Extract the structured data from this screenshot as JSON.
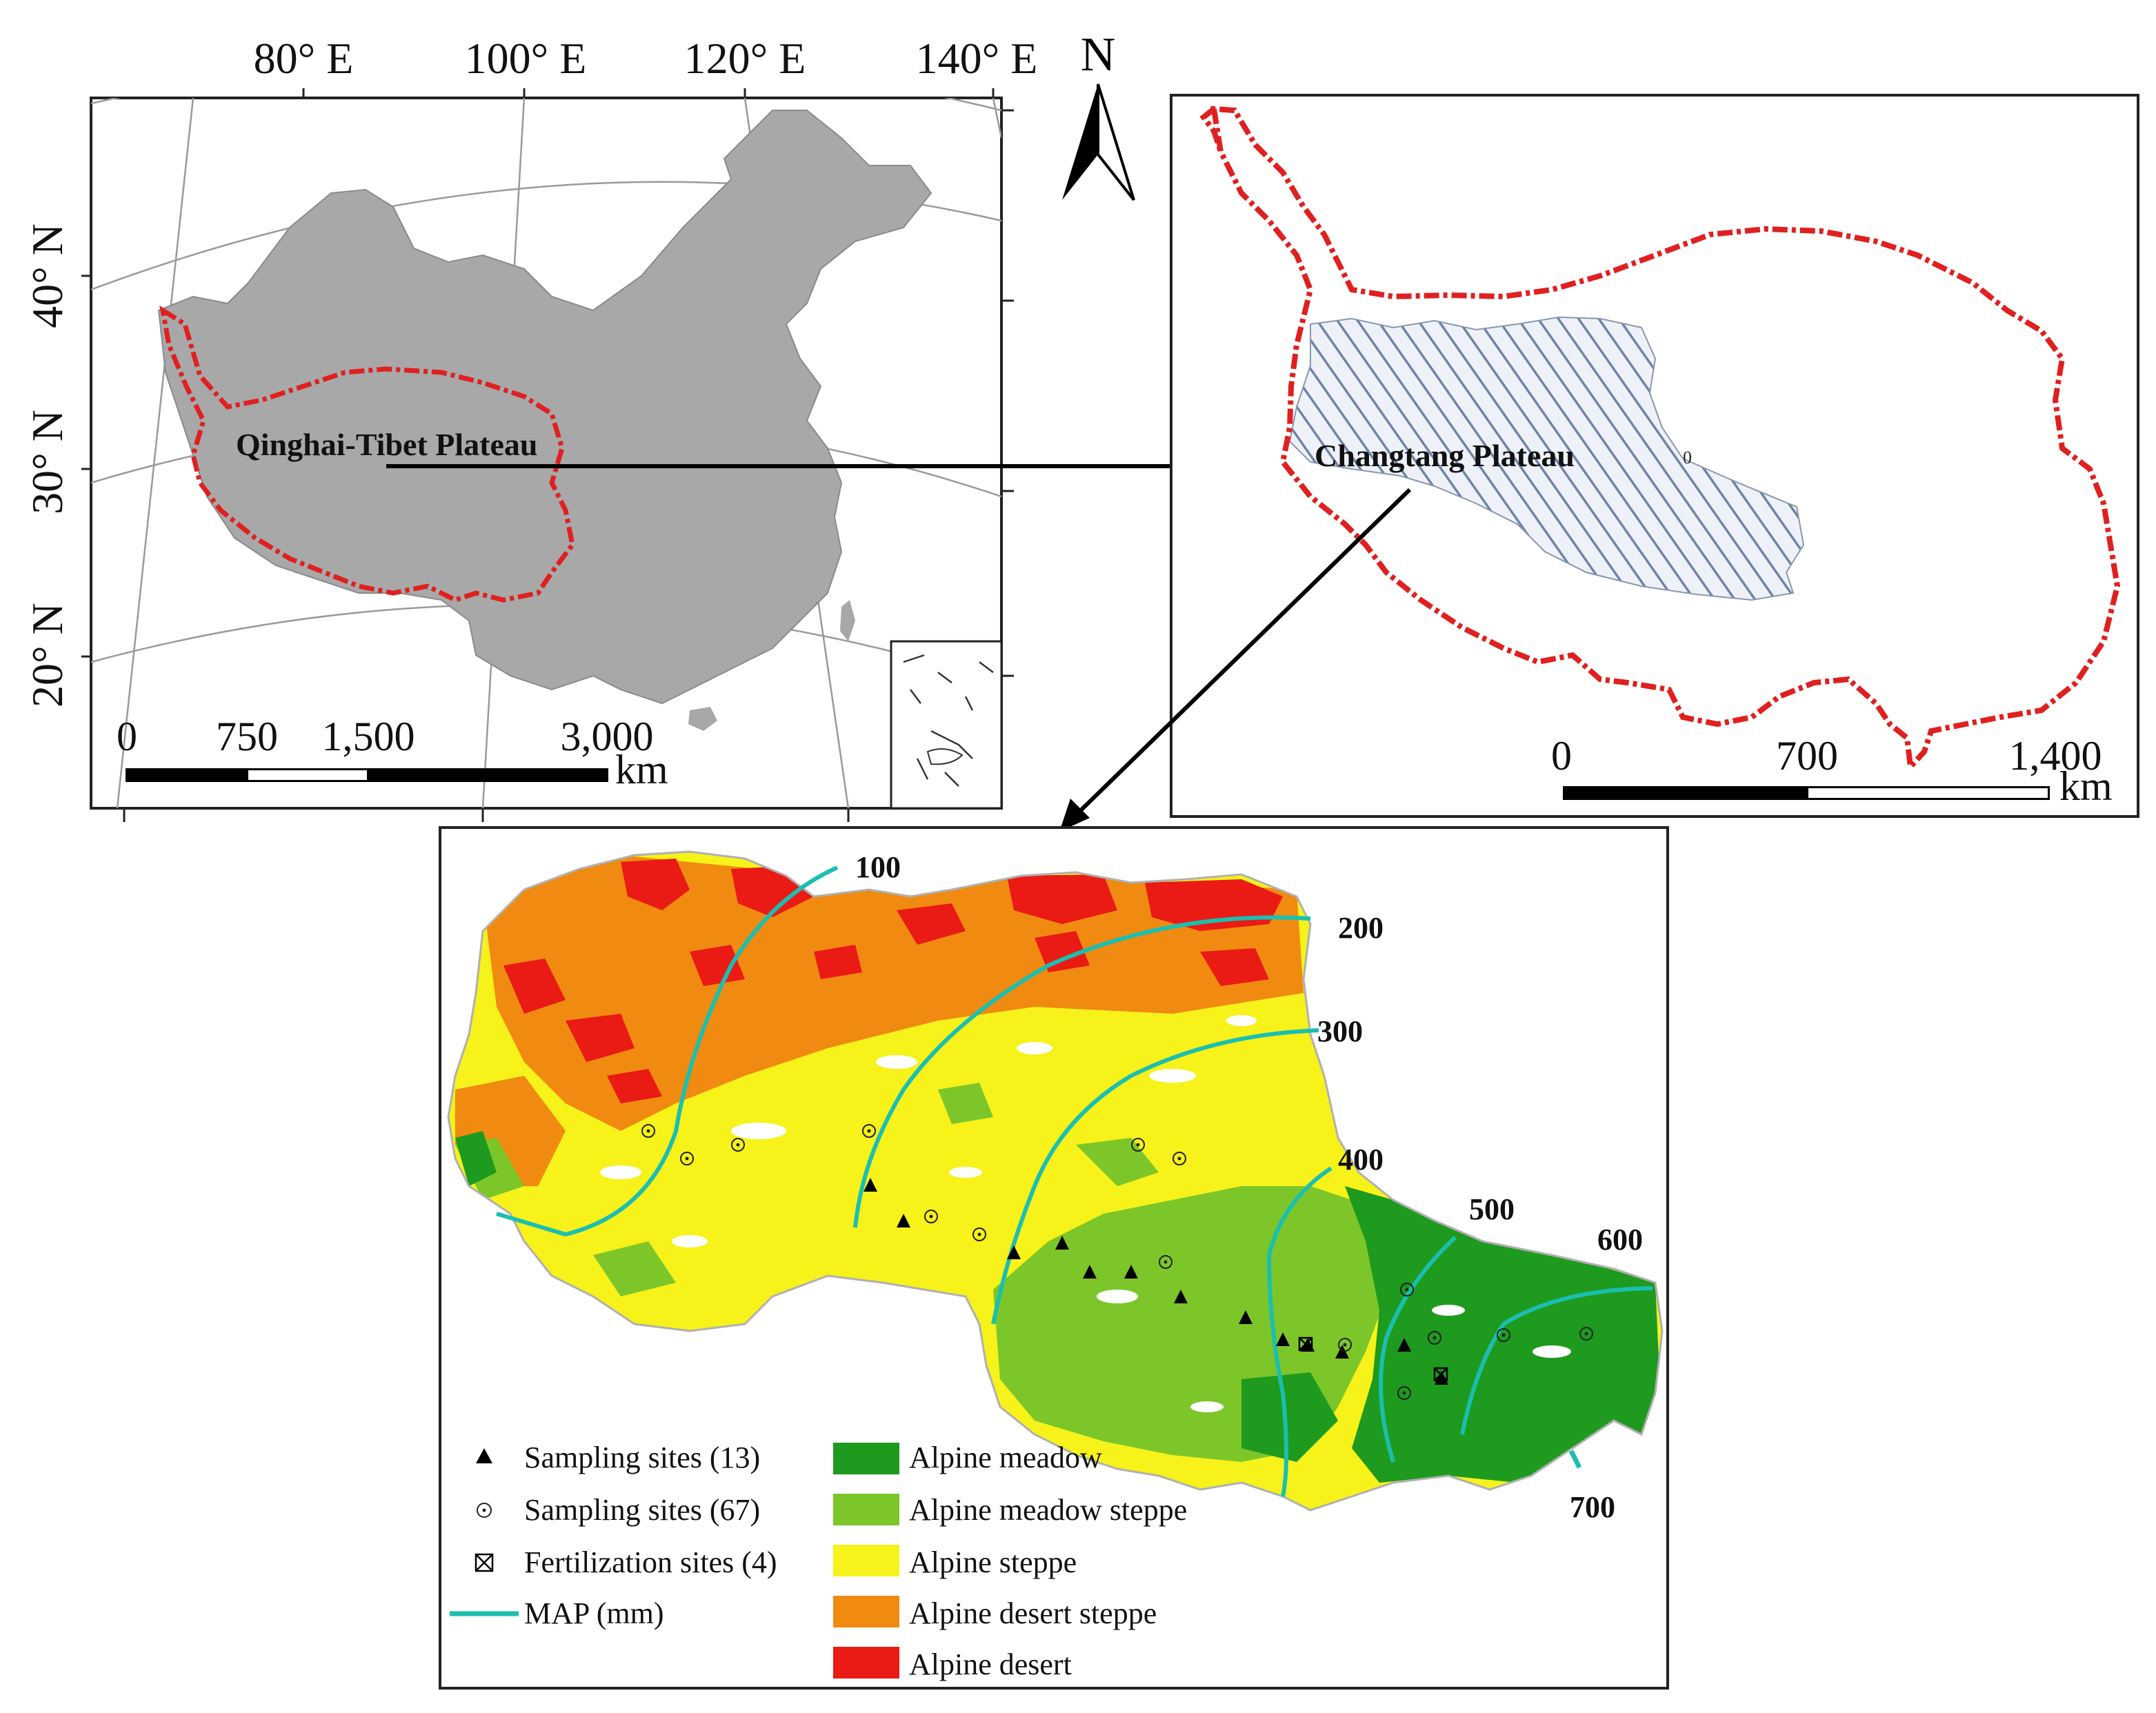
{
  "china_map": {
    "longitude_labels": [
      "80° E",
      "100° E",
      "120° E",
      "140° E"
    ],
    "latitude_labels": [
      "40° N",
      "30° N",
      "20° N"
    ],
    "plateau_label": "Qinghai-Tibet Plateau",
    "scale_ticks": [
      "0",
      "750",
      "1,500",
      "3,000"
    ],
    "scale_unit": "km",
    "country_color": "#a8a8a8",
    "boundary_color": "#e02020"
  },
  "north_arrow": {
    "label": "N"
  },
  "plateau_map": {
    "region_label": "Changtang Plateau",
    "small_mark": "0",
    "scale_ticks": [
      "0",
      "700",
      "1,400"
    ],
    "scale_unit": "km",
    "hatch_color": "#6f84a8"
  },
  "study_map": {
    "isohyets": [
      "100",
      "200",
      "300",
      "400",
      "500",
      "600",
      "700"
    ],
    "isohyet_color": "#1bbfb0",
    "legend": {
      "markers": [
        {
          "symbol": "triangle-icon",
          "label": "Sampling sites (13)"
        },
        {
          "symbol": "dotted-circle-icon",
          "label": "Sampling sites (67)"
        },
        {
          "symbol": "crossed-box-icon",
          "label": "Fertilization sites (4)"
        },
        {
          "symbol": "cyan-line-icon",
          "label": "MAP (mm)"
        }
      ],
      "vegetation": [
        {
          "label": "Alpine meadow",
          "color": "#1e9a1e"
        },
        {
          "label": "Alpine meadow steppe",
          "color": "#7cc62a"
        },
        {
          "label": "Alpine steppe",
          "color": "#f6f21a"
        },
        {
          "label": "Alpine desert steppe",
          "color": "#f08a10"
        },
        {
          "label": "Alpine desert",
          "color": "#ea1a14"
        }
      ]
    }
  }
}
